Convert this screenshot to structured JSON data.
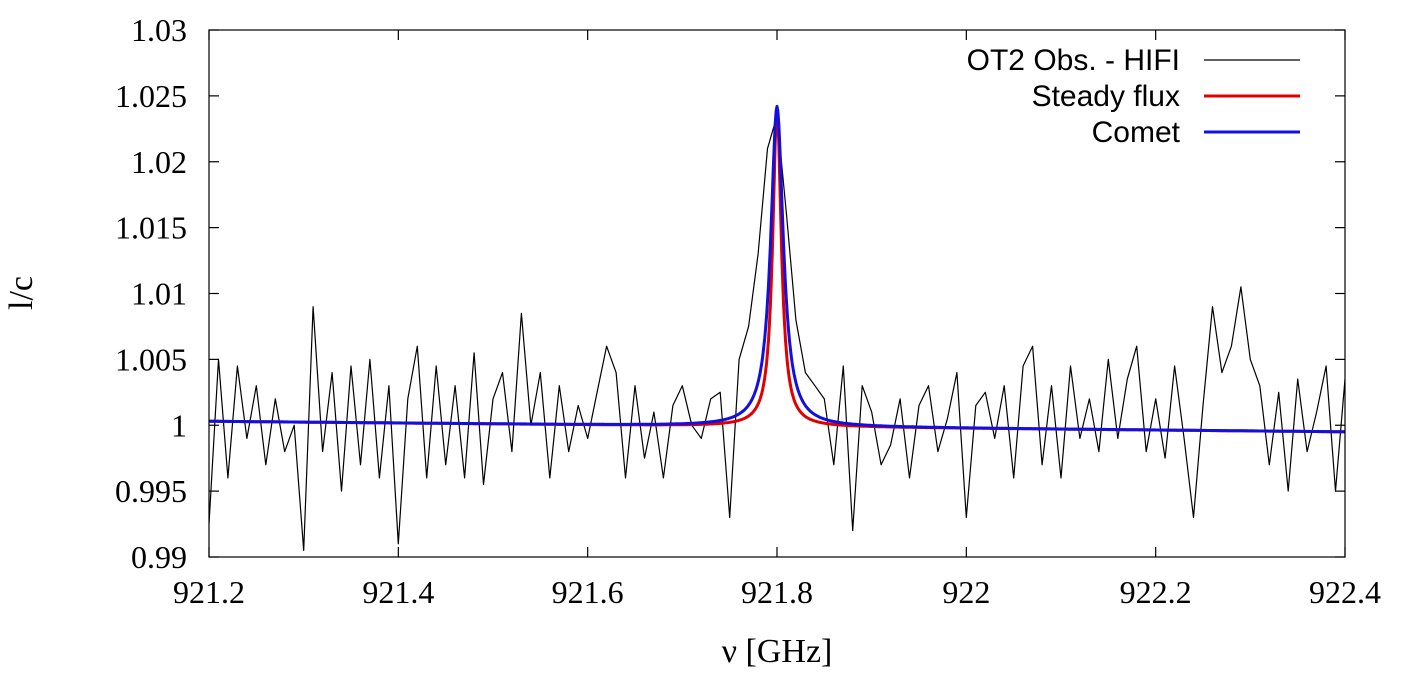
{
  "chart_data": {
    "type": "line",
    "title": "",
    "xlabel": "ν [GHz]",
    "ylabel": "l/c",
    "xlim": [
      921.2,
      922.4
    ],
    "ylim": [
      0.99,
      1.03
    ],
    "x_ticks": [
      921.2,
      921.4,
      921.6,
      921.8,
      922.0,
      922.2,
      922.4
    ],
    "x_tick_labels": [
      "921.2",
      "921.4",
      "921.6",
      "921.8",
      "922",
      "922.2",
      "922.4"
    ],
    "y_ticks": [
      0.99,
      0.995,
      1.0,
      1.005,
      1.01,
      1.015,
      1.02,
      1.025,
      1.03
    ],
    "y_tick_labels": [
      "0.99",
      "0.995",
      "1",
      "1.005",
      "1.01",
      "1.015",
      "1.02",
      "1.025",
      "1.03"
    ],
    "grid": false,
    "legend_position": "top-right",
    "series": [
      {
        "name": "OT2 Obs. - HIFI",
        "color": "#000000",
        "x": [
          921.2,
          921.21,
          921.22,
          921.23,
          921.24,
          921.25,
          921.26,
          921.27,
          921.28,
          921.29,
          921.3,
          921.31,
          921.32,
          921.33,
          921.34,
          921.35,
          921.36,
          921.37,
          921.38,
          921.39,
          921.4,
          921.41,
          921.42,
          921.43,
          921.44,
          921.45,
          921.46,
          921.47,
          921.48,
          921.49,
          921.5,
          921.51,
          921.52,
          921.53,
          921.54,
          921.55,
          921.56,
          921.57,
          921.58,
          921.59,
          921.6,
          921.61,
          921.62,
          921.63,
          921.64,
          921.65,
          921.66,
          921.67,
          921.68,
          921.69,
          921.7,
          921.71,
          921.72,
          921.73,
          921.74,
          921.75,
          921.76,
          921.77,
          921.78,
          921.79,
          921.8,
          921.81,
          921.82,
          921.83,
          921.84,
          921.85,
          921.86,
          921.87,
          921.88,
          921.89,
          921.9,
          921.91,
          921.92,
          921.93,
          921.94,
          921.95,
          921.96,
          921.97,
          921.98,
          921.99,
          922.0,
          922.01,
          922.02,
          922.03,
          922.04,
          922.05,
          922.06,
          922.07,
          922.08,
          922.09,
          922.1,
          922.11,
          922.12,
          922.13,
          922.14,
          922.15,
          922.16,
          922.17,
          922.18,
          922.19,
          922.2,
          922.21,
          922.22,
          922.23,
          922.24,
          922.25,
          922.26,
          922.27,
          922.28,
          922.29,
          922.3,
          922.31,
          922.32,
          922.33,
          922.34,
          922.35,
          922.36,
          922.37,
          922.38,
          922.39,
          922.4
        ],
        "y": [
          0.9925,
          1.005,
          0.996,
          1.0045,
          0.999,
          1.003,
          0.997,
          1.002,
          0.998,
          1.0,
          0.9905,
          1.009,
          0.998,
          1.004,
          0.995,
          1.0045,
          0.997,
          1.005,
          0.996,
          1.003,
          0.991,
          1.002,
          1.006,
          0.996,
          1.0045,
          0.997,
          1.003,
          0.996,
          1.0055,
          0.9955,
          1.002,
          1.004,
          0.998,
          1.0085,
          1.0,
          1.004,
          0.996,
          1.003,
          0.998,
          1.0015,
          0.999,
          1.0025,
          1.006,
          1.004,
          0.996,
          1.003,
          0.9975,
          1.001,
          0.996,
          1.0015,
          1.003,
          1.0,
          0.999,
          1.002,
          1.0025,
          0.993,
          1.005,
          1.0075,
          1.013,
          1.021,
          1.0235,
          1.016,
          1.008,
          1.004,
          1.003,
          1.002,
          0.997,
          1.0045,
          0.992,
          1.003,
          1.001,
          0.997,
          0.9985,
          1.002,
          0.996,
          1.0015,
          1.003,
          0.998,
          1.0005,
          1.004,
          0.993,
          1.0015,
          1.0025,
          0.999,
          1.003,
          0.996,
          1.0045,
          1.006,
          0.997,
          1.003,
          0.996,
          1.0045,
          0.999,
          1.002,
          0.998,
          1.005,
          0.999,
          1.0035,
          1.006,
          0.998,
          1.002,
          0.9975,
          1.0045,
          0.999,
          0.993,
          1.0015,
          1.009,
          1.004,
          1.006,
          1.0105,
          1.005,
          1.003,
          0.997,
          1.0025,
          0.995,
          1.0035,
          0.998,
          1.001,
          1.0045,
          0.995,
          1.0035
        ]
      },
      {
        "name": "Steady flux",
        "color": "#e00000",
        "model": "lorentzian",
        "center": 921.8,
        "peak": 1.024,
        "width": 0.0055,
        "baseline_start": 1.0003,
        "baseline_end": 0.9995
      },
      {
        "name": "Comet",
        "color": "#1010e0",
        "model": "lorentzian",
        "center": 921.8,
        "peak": 1.0242,
        "width": 0.008,
        "baseline_start": 1.0003,
        "baseline_end": 0.9995
      }
    ]
  }
}
